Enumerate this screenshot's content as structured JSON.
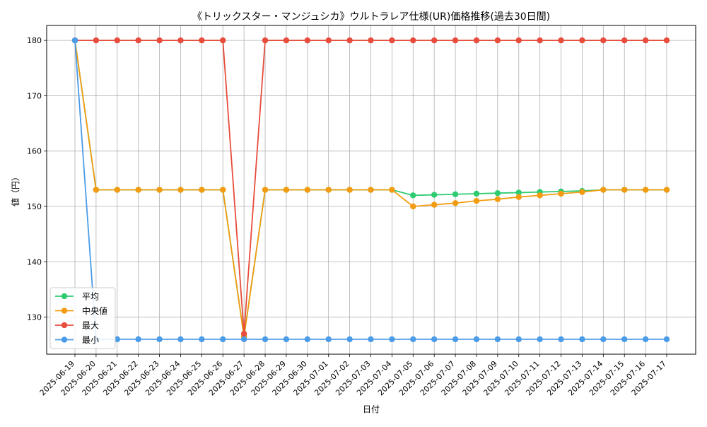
{
  "chart_data": {
    "type": "line",
    "title": "《トリックスター・マンジュシカ》ウルトラレア仕様(UR)価格推移(過去30日間)",
    "xlabel": "日付",
    "ylabel": "値（円）",
    "ylim": [
      123.3,
      182.7
    ],
    "yticks": [
      130,
      140,
      150,
      160,
      170,
      180
    ],
    "grid": true,
    "legend_position": "lower-left",
    "categories": [
      "2025-06-19",
      "2025-06-20",
      "2025-06-21",
      "2025-06-22",
      "2025-06-23",
      "2025-06-24",
      "2025-06-25",
      "2025-06-26",
      "2025-06-27",
      "2025-06-28",
      "2025-06-29",
      "2025-06-30",
      "2025-07-01",
      "2025-07-02",
      "2025-07-03",
      "2025-07-04",
      "2025-07-05",
      "2025-07-06",
      "2025-07-07",
      "2025-07-08",
      "2025-07-09",
      "2025-07-10",
      "2025-07-11",
      "2025-07-12",
      "2025-07-13",
      "2025-07-14",
      "2025-07-15",
      "2025-07-16",
      "2025-07-17"
    ],
    "series": [
      {
        "name": "平均",
        "color": "#2ecc71",
        "values": [
          180,
          153,
          153,
          153,
          153,
          153,
          153,
          153,
          126.5,
          153,
          153,
          153,
          153,
          153,
          153,
          153,
          152,
          152.1,
          152.2,
          152.3,
          152.4,
          152.5,
          152.6,
          152.7,
          152.8,
          153,
          153,
          153,
          153
        ]
      },
      {
        "name": "中央値",
        "color": "#f39c12",
        "values": [
          180,
          153,
          153,
          153,
          153,
          153,
          153,
          153,
          126.5,
          153,
          153,
          153,
          153,
          153,
          153,
          153,
          150,
          150.3,
          150.6,
          151,
          151.3,
          151.7,
          152,
          152.3,
          152.6,
          153,
          153,
          153,
          153
        ]
      },
      {
        "name": "最大",
        "color": "#e74c3c",
        "values": [
          180,
          180,
          180,
          180,
          180,
          180,
          180,
          180,
          127,
          180,
          180,
          180,
          180,
          180,
          180,
          180,
          180,
          180,
          180,
          180,
          180,
          180,
          180,
          180,
          180,
          180,
          180,
          180,
          180
        ]
      },
      {
        "name": "最小",
        "color": "#4a9be8",
        "values": [
          180,
          126,
          126,
          126,
          126,
          126,
          126,
          126,
          126,
          126,
          126,
          126,
          126,
          126,
          126,
          126,
          126,
          126,
          126,
          126,
          126,
          126,
          126,
          126,
          126,
          126,
          126,
          126,
          126
        ]
      }
    ]
  }
}
